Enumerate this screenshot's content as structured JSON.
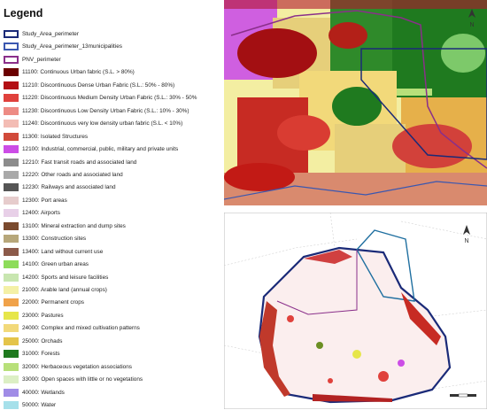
{
  "legend": {
    "title": "Legend",
    "items": [
      {
        "label": "Study_Area_perimeter",
        "color": "#ffffff",
        "outline": "#1a2a78"
      },
      {
        "label": "Study_Area_perimeter_13municipalities",
        "color": "#ffffff",
        "outline": "#3a57b0"
      },
      {
        "label": "PNV_perimeter",
        "color": "#ffffff",
        "outline": "#8a2f8a"
      },
      {
        "label": "11100: Continuous Urban fabric (S.L. > 80%)",
        "color": "#6b0000"
      },
      {
        "label": "11210: Discontinuous Dense Urban Fabric (S.L.: 50% - 80%)",
        "color": "#b30f14"
      },
      {
        "label": "11220: Discontinuous Medium Density Urban Fabric (S.L.: 30% - 50%",
        "color": "#e0413c"
      },
      {
        "label": "11230: Discontinuous Low Density Urban Fabric (S.L.: 10% - 30%)",
        "color": "#ed8b84"
      },
      {
        "label": "11240: Discontinuous very low density urban fabric (S.L. < 10%)",
        "color": "#f3bcb4"
      },
      {
        "label": "11300: Isolated Structures",
        "color": "#d14a3a"
      },
      {
        "label": "12100: Industrial, commercial, public, military and private units",
        "color": "#cc4de6"
      },
      {
        "label": "12210: Fast transit roads and associated land",
        "color": "#8c8c8c"
      },
      {
        "label": "12220: Other roads and associated land",
        "color": "#a9a9a9"
      },
      {
        "label": "12230: Railways and associated land",
        "color": "#555555"
      },
      {
        "label": "12300: Port areas",
        "color": "#e6cccc"
      },
      {
        "label": "12400: Airports",
        "color": "#e8d0e8"
      },
      {
        "label": "13100: Mineral extraction and dump sites",
        "color": "#7a4a2e"
      },
      {
        "label": "13300: Construction sites",
        "color": "#b7a77a"
      },
      {
        "label": "13400: Land without current use",
        "color": "#8c5a4a"
      },
      {
        "label": "14100: Green urban areas",
        "color": "#8ddc5a"
      },
      {
        "label": "14200: Sports and leisure facilities",
        "color": "#c8e6b0"
      },
      {
        "label": "21000: Arable land (annual crops)",
        "color": "#f4f0a6"
      },
      {
        "label": "22000: Permanent crops",
        "color": "#f0a24a"
      },
      {
        "label": "23000: Pastures",
        "color": "#e6e64a"
      },
      {
        "label": "24000: Complex and mixed cultivation patterns",
        "color": "#f2d97a"
      },
      {
        "label": "25000: Orchads",
        "color": "#e4c44a"
      },
      {
        "label": "31000: Forests",
        "color": "#1f7a1f"
      },
      {
        "label": "32000: Herbaceous vegetation associations",
        "color": "#b8e07a"
      },
      {
        "label": "33000: Open spaces with little or no vegetations",
        "color": "#dcefc4"
      },
      {
        "label": "40000: Wetlands",
        "color": "#a08ce6"
      },
      {
        "label": "50000: Water",
        "color": "#a6e0ea"
      }
    ]
  },
  "maps": {
    "north_arrow_label": "N",
    "top": {
      "base_color": "#f4f0a6"
    },
    "bottom": {
      "base_color": "#ffffff"
    }
  }
}
